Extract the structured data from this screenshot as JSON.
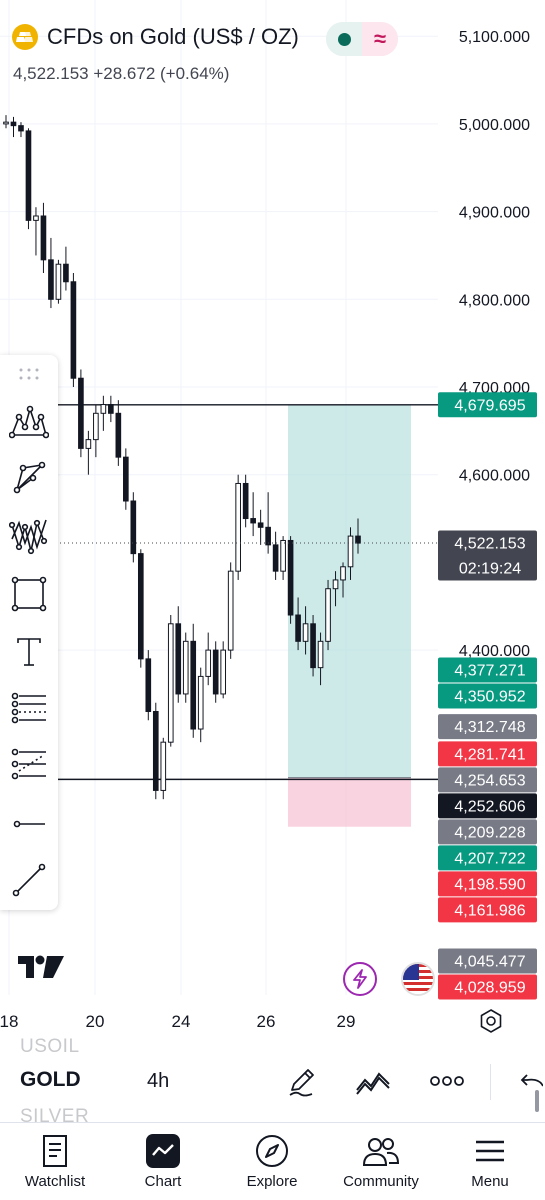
{
  "header": {
    "symbol_title": "CFDs on Gold (US$ / OZ)",
    "quote": "4,522.153  +28.672 (+0.64%)",
    "pill_right_glyph": "≈",
    "logo_color": "#f0b400"
  },
  "chart_data": {
    "type": "candlestick",
    "interval": "4h",
    "x_ticks": [
      "18",
      "20",
      "24",
      "26",
      "29"
    ],
    "y_ticks": [
      "5,100.000",
      "5,000.000",
      "4,900.000",
      "4,800.000",
      "4,700.000",
      "4,600.000",
      "4,400.000"
    ],
    "ylim": [
      4000,
      5100
    ],
    "grid": true,
    "last_price": 4522.153,
    "countdown": "02:19:24",
    "candles": [
      [
        5000,
        5010,
        4995,
        5002
      ],
      [
        5002,
        5008,
        4985,
        4998
      ],
      [
        4998,
        5002,
        4985,
        4992
      ],
      [
        4992,
        4995,
        4880,
        4890
      ],
      [
        4890,
        4905,
        4850,
        4895
      ],
      [
        4895,
        4910,
        4830,
        4845
      ],
      [
        4845,
        4870,
        4790,
        4800
      ],
      [
        4800,
        4845,
        4795,
        4840
      ],
      [
        4840,
        4860,
        4810,
        4820
      ],
      [
        4820,
        4830,
        4700,
        4710
      ],
      [
        4710,
        4720,
        4620,
        4630
      ],
      [
        4630,
        4650,
        4600,
        4640
      ],
      [
        4640,
        4680,
        4620,
        4670
      ],
      [
        4670,
        4690,
        4650,
        4680
      ],
      [
        4680,
        4690,
        4660,
        4670
      ],
      [
        4670,
        4685,
        4610,
        4620
      ],
      [
        4620,
        4630,
        4560,
        4570
      ],
      [
        4570,
        4580,
        4500,
        4510
      ],
      [
        4510,
        4515,
        4380,
        4390
      ],
      [
        4390,
        4400,
        4320,
        4330
      ],
      [
        4330,
        4340,
        4230,
        4240
      ],
      [
        4240,
        4300,
        4230,
        4295
      ],
      [
        4295,
        4440,
        4290,
        4430
      ],
      [
        4430,
        4450,
        4340,
        4350
      ],
      [
        4350,
        4420,
        4340,
        4410
      ],
      [
        4410,
        4430,
        4300,
        4310
      ],
      [
        4310,
        4380,
        4295,
        4370
      ],
      [
        4370,
        4420,
        4360,
        4400
      ],
      [
        4400,
        4410,
        4340,
        4350
      ],
      [
        4350,
        4410,
        4345,
        4400
      ],
      [
        4400,
        4500,
        4390,
        4490
      ],
      [
        4490,
        4600,
        4480,
        4590
      ],
      [
        4590,
        4600,
        4540,
        4550
      ],
      [
        4550,
        4580,
        4530,
        4545
      ],
      [
        4545,
        4560,
        4520,
        4540
      ],
      [
        4540,
        4580,
        4510,
        4520
      ],
      [
        4520,
        4535,
        4480,
        4490
      ],
      [
        4490,
        4530,
        4480,
        4525
      ],
      [
        4525,
        4530,
        4430,
        4440
      ],
      [
        4440,
        4460,
        4400,
        4410
      ],
      [
        4410,
        4450,
        4395,
        4430
      ],
      [
        4430,
        4440,
        4370,
        4380
      ],
      [
        4380,
        4420,
        4360,
        4410
      ],
      [
        4410,
        4480,
        4400,
        4470
      ],
      [
        4470,
        4490,
        4450,
        4480
      ],
      [
        4480,
        4500,
        4460,
        4495
      ],
      [
        4495,
        4540,
        4480,
        4530
      ],
      [
        4530,
        4550,
        4510,
        4522
      ]
    ],
    "position": {
      "entry": 4254.653,
      "target": 4679.695,
      "stop": 4198.59
    },
    "horizontal_lines": [
      4679.695,
      4252.606
    ],
    "price_labels": [
      {
        "value": "4,679.695",
        "bg": "#089981",
        "price": 4679.695
      },
      {
        "value": "4,522.153",
        "bg": "#434651",
        "price": 4522.153
      },
      {
        "value": "4,377.271",
        "bg": "#089981",
        "price": 4377.271
      },
      {
        "value": "4,350.952",
        "bg": "#089981",
        "price": 4350.952
      },
      {
        "value": "4,312.748",
        "bg": "#787b86",
        "price": 4312.748
      },
      {
        "value": "4,281.741",
        "bg": "#f23645",
        "price": 4281.741
      },
      {
        "value": "4,254.653",
        "bg": "#787b86",
        "price": 4254.653
      },
      {
        "value": "4,252.606",
        "bg": "#131722",
        "price": 4252.606
      },
      {
        "value": "4,209.228",
        "bg": "#787b86",
        "price": 4209.228
      },
      {
        "value": "4,207.722",
        "bg": "#089981",
        "price": 4207.722
      },
      {
        "value": "4,198.590",
        "bg": "#f23645",
        "price": 4198.59
      },
      {
        "value": "4,161.986",
        "bg": "#f23645",
        "price": 4161.986
      },
      {
        "value": "4,045.477",
        "bg": "#787b86",
        "price": 4045.477
      },
      {
        "value": "4,028.959",
        "bg": "#f23645",
        "price": 4028.959
      }
    ],
    "colors": {
      "profit_zone": "#b2dfdb",
      "loss_zone": "#f8bbd0"
    }
  },
  "symbols": {
    "prev": "USOIL",
    "current": "GOLD",
    "next": "SILVER",
    "interval": "4h"
  },
  "nav": [
    {
      "label": "Watchlist",
      "icon": "watchlist-icon"
    },
    {
      "label": "Chart",
      "icon": "chart-icon"
    },
    {
      "label": "Explore",
      "icon": "compass-icon"
    },
    {
      "label": "Community",
      "icon": "community-icon"
    },
    {
      "label": "Menu",
      "icon": "menu-icon"
    }
  ]
}
